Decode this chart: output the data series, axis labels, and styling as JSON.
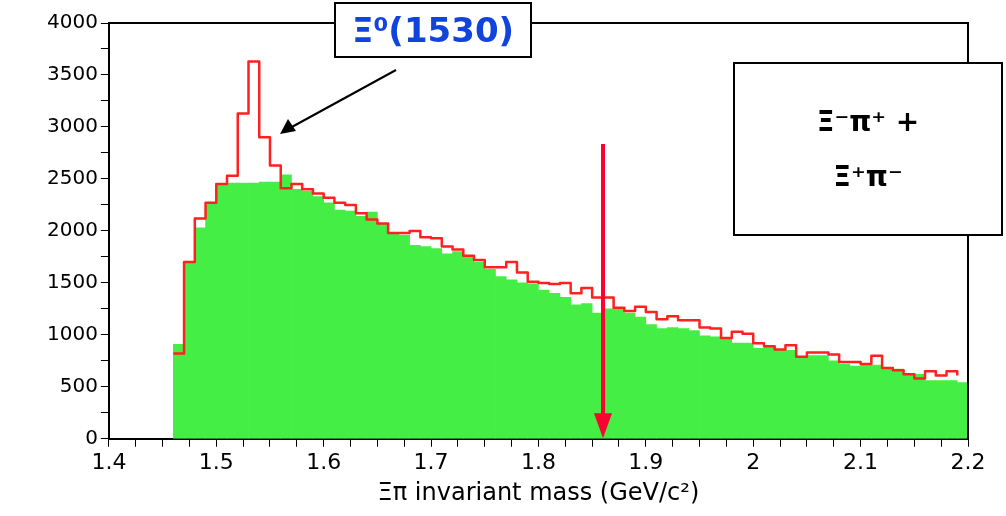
{
  "chart_data": {
    "type": "histogram",
    "xlabel": "Ξπ invariant mass (GeV/c²)",
    "bins": [
      1.46,
      1.47,
      1.48,
      1.49,
      1.5,
      1.51,
      1.52,
      1.53,
      1.54,
      1.55,
      1.56,
      1.57,
      1.58,
      1.59,
      1.6,
      1.61,
      1.62,
      1.63,
      1.64,
      1.65,
      1.66,
      1.67,
      1.68,
      1.69,
      1.7,
      1.71,
      1.72,
      1.73,
      1.74,
      1.75,
      1.76,
      1.77,
      1.78,
      1.79,
      1.8,
      1.81,
      1.82,
      1.83,
      1.84,
      1.85,
      1.86,
      1.87,
      1.88,
      1.89,
      1.9,
      1.91,
      1.92,
      1.93,
      1.94,
      1.95,
      1.96,
      1.97,
      1.98,
      1.99,
      2.0,
      2.01,
      2.02,
      2.03,
      2.04,
      2.05,
      2.06,
      2.07,
      2.08,
      2.09,
      2.1,
      2.11,
      2.12,
      2.13,
      2.14,
      2.15,
      2.16,
      2.17,
      2.18,
      2.19,
      2.2
    ],
    "series": [
      {
        "color": "#44ee44",
        "values": [
          910,
          1700,
          2030,
          2270,
          2450,
          2460,
          2460,
          2460,
          2470,
          2470,
          2540,
          2400,
          2380,
          2330,
          2270,
          2200,
          2190,
          2140,
          2180,
          2070,
          1980,
          1960,
          1860,
          1850,
          1830,
          1780,
          1800,
          1750,
          1700,
          1630,
          1560,
          1530,
          1500,
          1490,
          1430,
          1400,
          1360,
          1290,
          1300,
          1210,
          1250,
          1250,
          1210,
          1170,
          1100,
          1060,
          1070,
          1060,
          1040,
          990,
          980,
          970,
          920,
          920,
          870,
          880,
          850,
          850,
          790,
          800,
          800,
          750,
          720,
          700,
          710,
          710,
          680,
          670,
          630,
          620,
          560,
          560,
          560,
          540
        ]
      },
      {
        "type": "step",
        "color": "#ff2020",
        "x": [
          1.46,
          1.47,
          1.48,
          1.49,
          1.5,
          1.51,
          1.52,
          1.53,
          1.54,
          1.55,
          1.56,
          1.57,
          1.58,
          1.59,
          1.6,
          1.61,
          1.62,
          1.63,
          1.64,
          1.65,
          1.66,
          1.67,
          1.68,
          1.69,
          1.7,
          1.71,
          1.72,
          1.73,
          1.74,
          1.75,
          1.76,
          1.77,
          1.78,
          1.79,
          1.8,
          1.81,
          1.82,
          1.83,
          1.84,
          1.85,
          1.86,
          1.87,
          1.88,
          1.89,
          1.9,
          1.91,
          1.92,
          1.93,
          1.94,
          1.95,
          1.96,
          1.97,
          1.98,
          1.99,
          2.0,
          2.01,
          2.02,
          2.03,
          2.04,
          2.05,
          2.06,
          2.07,
          2.08,
          2.09,
          2.1,
          2.11,
          2.12,
          2.13,
          2.14,
          2.15,
          2.16,
          2.17,
          2.18,
          2.19
        ],
        "values": [
          820,
          1700,
          2120,
          2270,
          2450,
          2530,
          3130,
          3630,
          2900,
          2630,
          2410,
          2450,
          2400,
          2360,
          2320,
          2270,
          2250,
          2170,
          2110,
          2070,
          1980,
          1980,
          2000,
          1940,
          1930,
          1850,
          1820,
          1760,
          1720,
          1650,
          1650,
          1700,
          1600,
          1510,
          1500,
          1490,
          1500,
          1400,
          1450,
          1360,
          1360,
          1260,
          1230,
          1270,
          1220,
          1150,
          1180,
          1140,
          1140,
          1070,
          1060,
          970,
          1030,
          1010,
          920,
          890,
          860,
          900,
          790,
          830,
          830,
          810,
          740,
          740,
          720,
          800,
          680,
          660,
          620,
          580,
          650,
          610,
          650,
          610
        ]
      }
    ],
    "xlim": [
      1.4,
      2.2
    ],
    "xticks": [
      1.4,
      {
        "value": 1.425,
        "label": null
      },
      {
        "value": 1.45,
        "label": null
      },
      {
        "value": 1.475,
        "label": null
      },
      1.5,
      {
        "value": 1.525,
        "label": null
      },
      {
        "value": 1.55,
        "label": null
      },
      {
        "value": 1.575,
        "label": null
      },
      1.6,
      {
        "value": 1.625,
        "label": null
      },
      {
        "value": 1.65,
        "label": null
      },
      {
        "value": 1.675,
        "label": null
      },
      1.7,
      {
        "value": 1.725,
        "label": null
      },
      {
        "value": 1.75,
        "label": null
      },
      {
        "value": 1.775,
        "label": null
      },
      1.8,
      {
        "value": 1.825,
        "label": null
      },
      {
        "value": 1.85,
        "label": null
      },
      {
        "value": 1.875,
        "label": null
      },
      1.9,
      {
        "value": 1.925,
        "label": null
      },
      {
        "value": 1.95,
        "label": null
      },
      {
        "value": 1.975,
        "label": null
      },
      2,
      {
        "value": 2.025,
        "label": null
      },
      {
        "value": 2.05,
        "label": null
      },
      {
        "value": 2.075,
        "label": null
      },
      2.1,
      {
        "value": 2.125,
        "label": null
      },
      {
        "value": 2.15,
        "label": null
      },
      {
        "value": 2.175,
        "label": null
      },
      2.2
    ],
    "ylim": [
      0,
      4000
    ],
    "yticks": [
      0,
      {
        "value": 250,
        "label": null
      },
      500,
      {
        "value": 750,
        "label": null
      },
      1000,
      {
        "value": 1250,
        "label": null
      },
      1500,
      {
        "value": 1750,
        "label": null
      },
      2000,
      {
        "value": 2250,
        "label": null
      },
      2500,
      {
        "value": 2750,
        "label": null
      },
      3000,
      {
        "value": 3250,
        "label": null
      },
      3500,
      {
        "value": 3750,
        "label": null
      },
      4000
    ],
    "grid": false,
    "legend": false,
    "ref_lines": [
      {
        "axis": "x",
        "value": 1.86,
        "color": "#ff0033"
      }
    ],
    "annotations": [
      "Ξ⁰(1530)",
      "Ξ⁻π⁺ +",
      "Ξ⁺π⁻"
    ]
  }
}
